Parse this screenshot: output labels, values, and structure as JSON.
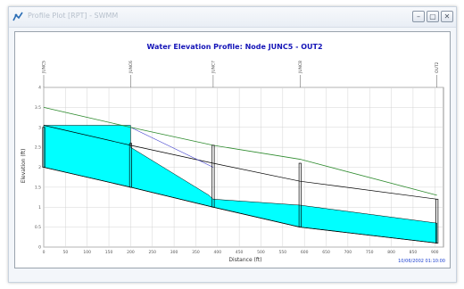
{
  "window": {
    "title": "Profile Plot [RPT] - SWMM",
    "buttons": {
      "minimize": "–",
      "restore": "▢",
      "close": "✕"
    }
  },
  "chart_data": {
    "type": "area",
    "title": "Water Elevation Profile: Node JUNC5 - OUT2",
    "xlabel": "Distance (ft)",
    "ylabel": "Elevation (ft)",
    "xlim": [
      0,
      920
    ],
    "ylim": [
      0,
      4
    ],
    "x_ticks": [
      0,
      50,
      100,
      150,
      200,
      250,
      300,
      350,
      400,
      450,
      500,
      550,
      600,
      650,
      700,
      750,
      800,
      850,
      900
    ],
    "y_ticks": [
      0,
      0.5,
      1,
      1.5,
      2,
      2.5,
      3,
      3.5,
      4
    ],
    "grid": true,
    "nodes": [
      {
        "name": "JUNC5",
        "x": 0,
        "invert": 2.0,
        "top": 3.0
      },
      {
        "name": "JUNC6",
        "x": 200,
        "invert": 1.5,
        "top": 2.6
      },
      {
        "name": "JUNC7",
        "x": 390,
        "invert": 1.0,
        "top": 2.55
      },
      {
        "name": "JUNC8",
        "x": 590,
        "invert": 0.5,
        "top": 2.1
      },
      {
        "name": "OUT2",
        "x": 905,
        "invert": 0.1,
        "top": 1.2
      }
    ],
    "ground_line": {
      "x": [
        0,
        200,
        390,
        590,
        905
      ],
      "y": [
        3.5,
        3.0,
        2.55,
        2.2,
        1.3
      ]
    },
    "conduit_crown": {
      "x": [
        0,
        200,
        390,
        590,
        905
      ],
      "y": [
        3.05,
        2.55,
        2.1,
        1.65,
        1.2
      ]
    },
    "hgl_dashed": {
      "x": [
        200,
        390
      ],
      "y": [
        3.0,
        2.0
      ]
    },
    "water_surface": {
      "x": [
        0,
        200,
        200,
        380,
        390,
        590,
        905
      ],
      "y": [
        3.05,
        3.05,
        2.5,
        1.3,
        1.2,
        1.05,
        0.6
      ]
    },
    "invert_line": {
      "x": [
        0,
        200,
        390,
        590,
        905
      ],
      "y": [
        2.0,
        1.5,
        1.0,
        0.5,
        0.1
      ]
    },
    "footer": "10/06/2002 01:10:00"
  }
}
